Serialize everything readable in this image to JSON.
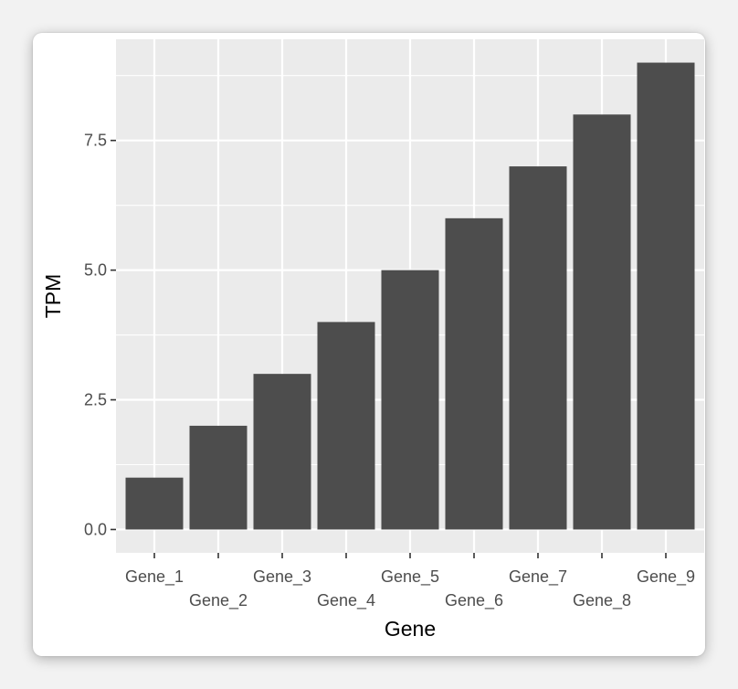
{
  "chart_data": {
    "type": "bar",
    "categories": [
      "Gene_1",
      "Gene_2",
      "Gene_3",
      "Gene_4",
      "Gene_5",
      "Gene_6",
      "Gene_7",
      "Gene_8",
      "Gene_9"
    ],
    "values": [
      1,
      2,
      3,
      4,
      5,
      6,
      7,
      8,
      9
    ],
    "title": "",
    "xlabel": "Gene",
    "ylabel": "TPM",
    "ylim": [
      -0.45,
      9.45
    ],
    "yticks": [
      0.0,
      2.5,
      5.0,
      7.5
    ],
    "ytick_labels": [
      "0.0",
      "2.5",
      "5.0",
      "7.5"
    ],
    "grid": true,
    "colors": {
      "panel": "#ebebeb",
      "grid": "#ffffff",
      "bar": "#4d4d4d",
      "tick": "#333333",
      "text": "#4d4d4d"
    }
  }
}
